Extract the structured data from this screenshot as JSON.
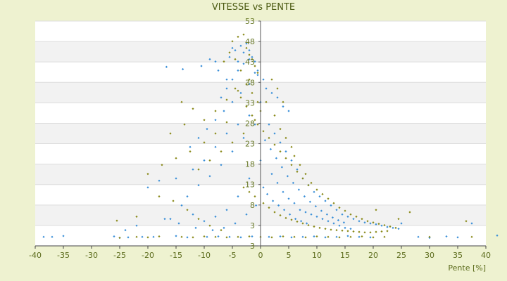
{
  "chart_data": {
    "type": "scatter",
    "title": "VITESSE vs PENTE",
    "xlabel": "Pente [%]",
    "ylabel": "",
    "xlim": [
      -40,
      40
    ],
    "ylim": [
      3,
      53
    ],
    "x_ticks": [
      "-40",
      "-35",
      "-30",
      "-25",
      "-20",
      "-15",
      "-10",
      "-5",
      "0",
      "5",
      "10",
      "15",
      "20",
      "25",
      "30",
      "35",
      "40"
    ],
    "y_ticks": [
      "53",
      "48",
      "43",
      "38",
      "33",
      "28",
      "23",
      "18",
      "13",
      "8",
      "3",
      "3"
    ],
    "grid": true,
    "background_bands": [
      "#ffffff",
      "#f2f2f2"
    ],
    "series": [
      {
        "color": "#3a8fd8",
        "marker": "diamond",
        "points": [
          [
            -38.5,
            5.0
          ],
          [
            -35.0,
            5.2
          ],
          [
            -25.0,
            4.8
          ],
          [
            -23.5,
            4.9
          ],
          [
            -21.0,
            5.0
          ],
          [
            -16.7,
            42.8
          ],
          [
            -13.8,
            42.3
          ],
          [
            -10.5,
            43.0
          ],
          [
            -9.0,
            44.5
          ],
          [
            -8.0,
            44.0
          ],
          [
            -7.5,
            42.0
          ],
          [
            -6.0,
            40.0
          ],
          [
            -5.5,
            45.0
          ],
          [
            -5.0,
            47.0
          ],
          [
            -4.5,
            46.5
          ],
          [
            -4.0,
            44.0
          ],
          [
            -3.5,
            47.5
          ],
          [
            -3.0,
            46.0
          ],
          [
            -2.5,
            48.0
          ],
          [
            -2.0,
            46.5
          ],
          [
            -1.5,
            45.0
          ],
          [
            -1.0,
            44.0
          ],
          [
            -0.5,
            42.0
          ],
          [
            0.5,
            40.0
          ],
          [
            1.0,
            38.0
          ],
          [
            2.0,
            37.0
          ],
          [
            3.0,
            36.0
          ],
          [
            4.0,
            34.0
          ],
          [
            5.0,
            33.0
          ],
          [
            1.5,
            30.0
          ],
          [
            2.5,
            28.0
          ],
          [
            3.5,
            26.0
          ],
          [
            4.5,
            24.0
          ],
          [
            5.5,
            22.0
          ],
          [
            6.5,
            20.0
          ],
          [
            7.5,
            18.0
          ],
          [
            8.5,
            16.5
          ],
          [
            9.5,
            15.0
          ],
          [
            10.5,
            14.0
          ],
          [
            11.5,
            13.0
          ],
          [
            12.5,
            12.0
          ],
          [
            13.5,
            11.0
          ],
          [
            14.5,
            10.0
          ],
          [
            15.5,
            9.5
          ],
          [
            16.5,
            9.0
          ],
          [
            17.5,
            8.5
          ],
          [
            18.5,
            8.2
          ],
          [
            19.5,
            8.0
          ],
          [
            20.5,
            7.8
          ],
          [
            21.5,
            7.5
          ],
          [
            22.5,
            7.2
          ],
          [
            23.5,
            7.0
          ],
          [
            24.5,
            6.8
          ],
          [
            25.0,
            8.0
          ],
          [
            2.0,
            19.0
          ],
          [
            3.0,
            17.0
          ],
          [
            4.0,
            15.0
          ],
          [
            5.0,
            13.5
          ],
          [
            6.0,
            12.5
          ],
          [
            7.0,
            11.0
          ],
          [
            8.0,
            10.5
          ],
          [
            9.0,
            10.0
          ],
          [
            10.0,
            9.5
          ],
          [
            11.0,
            9.0
          ],
          [
            12.0,
            8.5
          ],
          [
            13.0,
            8.0
          ],
          [
            14.0,
            7.5
          ],
          [
            15.0,
            7.0
          ],
          [
            16.0,
            6.8
          ],
          [
            -20.0,
            16.0
          ],
          [
            -18.0,
            17.5
          ],
          [
            -15.0,
            18.0
          ],
          [
            -12.0,
            20.0
          ],
          [
            -10.0,
            22.0
          ],
          [
            -8.0,
            25.0
          ],
          [
            -6.0,
            28.0
          ],
          [
            -4.0,
            30.0
          ],
          [
            -2.0,
            32.0
          ],
          [
            0.0,
            35.0
          ],
          [
            -14.0,
            12.0
          ],
          [
            -12.0,
            10.0
          ],
          [
            -10.0,
            8.5
          ],
          [
            -8.0,
            9.5
          ],
          [
            -6.0,
            11.0
          ],
          [
            -4.0,
            14.0
          ],
          [
            -2.0,
            18.0
          ],
          [
            0.0,
            22.0
          ],
          [
            -24.0,
            6.5
          ],
          [
            -22.0,
            7.5
          ],
          [
            -16.0,
            9.0
          ],
          [
            -13.0,
            14.0
          ],
          [
            -11.0,
            16.5
          ],
          [
            -9.0,
            18.5
          ],
          [
            -7.0,
            21.0
          ],
          [
            -5.0,
            24.0
          ],
          [
            -3.0,
            27.0
          ],
          [
            -1.0,
            30.0
          ],
          [
            0.8,
            26.5
          ],
          [
            1.8,
            24.5
          ],
          [
            2.8,
            22.5
          ],
          [
            3.8,
            20.5
          ],
          [
            4.8,
            18.5
          ],
          [
            5.8,
            17.0
          ],
          [
            6.8,
            15.5
          ],
          [
            7.8,
            14.0
          ],
          [
            8.8,
            12.8
          ],
          [
            9.8,
            11.8
          ],
          [
            10.8,
            10.8
          ],
          [
            11.8,
            10.0
          ],
          [
            12.8,
            9.3
          ],
          [
            13.8,
            8.7
          ],
          [
            14.8,
            8.2
          ],
          [
            28.0,
            5.0
          ],
          [
            30.0,
            4.8
          ],
          [
            33.0,
            5.1
          ],
          [
            35.0,
            4.9
          ],
          [
            37.5,
            8.0
          ],
          [
            42.0,
            5.3
          ],
          [
            -37.0,
            5.0
          ],
          [
            -26.0,
            5.1
          ],
          [
            -19.0,
            5.0
          ],
          [
            -15.0,
            5.2
          ],
          [
            -13.0,
            4.9
          ],
          [
            -9.5,
            5.0
          ],
          [
            -7.5,
            5.1
          ],
          [
            -5.5,
            5.0
          ],
          [
            -3.5,
            4.9
          ],
          [
            -1.5,
            5.1
          ],
          [
            1.5,
            5.0
          ],
          [
            3.5,
            5.1
          ],
          [
            5.5,
            4.9
          ],
          [
            7.5,
            5.0
          ],
          [
            9.5,
            5.1
          ],
          [
            11.5,
            4.9
          ],
          [
            13.5,
            5.0
          ],
          [
            15.5,
            5.2
          ],
          [
            17.5,
            5.0
          ],
          [
            19.5,
            4.9
          ],
          [
            -12.5,
            25.0
          ],
          [
            -11.0,
            27.0
          ],
          [
            -9.5,
            29.0
          ],
          [
            -8.0,
            31.0
          ],
          [
            -6.5,
            33.0
          ],
          [
            -5.0,
            35.0
          ],
          [
            -3.5,
            37.0
          ],
          [
            -2.0,
            39.0
          ],
          [
            -0.5,
            41.0
          ],
          [
            -7.0,
            36.0
          ],
          [
            -6.0,
            38.0
          ],
          [
            -5.0,
            40.0
          ],
          [
            -4.0,
            42.0
          ],
          [
            -3.0,
            43.5
          ],
          [
            -2.0,
            44.5
          ],
          [
            -1.0,
            41.5
          ],
          [
            0.5,
            16.0
          ],
          [
            1.2,
            14.5
          ],
          [
            2.2,
            13.0
          ],
          [
            3.2,
            12.0
          ],
          [
            4.2,
            11.0
          ],
          [
            5.2,
            10.0
          ],
          [
            6.2,
            9.0
          ],
          [
            7.2,
            8.5
          ],
          [
            8.2,
            8.0
          ],
          [
            -17.0,
            9.0
          ],
          [
            -14.5,
            8.0
          ],
          [
            -11.5,
            7.0
          ],
          [
            -8.5,
            6.5
          ],
          [
            -6.5,
            7.0
          ],
          [
            -4.5,
            8.0
          ],
          [
            -2.5,
            10.0
          ],
          [
            -0.8,
            12.0
          ]
        ]
      },
      {
        "color": "#8a8a1a",
        "marker": "diamond",
        "points": [
          [
            -25.5,
            8.6
          ],
          [
            -22.0,
            9.5
          ],
          [
            -18.0,
            14.0
          ],
          [
            -15.5,
            13.0
          ],
          [
            -13.0,
            11.0
          ],
          [
            -11.0,
            9.0
          ],
          [
            -9.0,
            7.5
          ],
          [
            -7.0,
            6.5
          ],
          [
            -5.0,
            48.5
          ],
          [
            -4.0,
            49.5
          ],
          [
            -3.0,
            50.0
          ],
          [
            -2.5,
            47.0
          ],
          [
            -2.0,
            45.5
          ],
          [
            -1.5,
            44.5
          ],
          [
            -1.0,
            43.0
          ],
          [
            -0.5,
            41.5
          ],
          [
            -4.5,
            38.0
          ],
          [
            -3.5,
            36.0
          ],
          [
            -2.5,
            34.0
          ],
          [
            -1.5,
            32.0
          ],
          [
            -0.5,
            30.0
          ],
          [
            0.5,
            28.5
          ],
          [
            1.5,
            27.0
          ],
          [
            2.5,
            25.5
          ],
          [
            3.5,
            24.0
          ],
          [
            4.5,
            22.5
          ],
          [
            5.5,
            21.0
          ],
          [
            6.5,
            19.5
          ],
          [
            7.5,
            18.0
          ],
          [
            8.5,
            16.5
          ],
          [
            2.0,
            40.0
          ],
          [
            3.0,
            38.0
          ],
          [
            4.0,
            35.0
          ],
          [
            2.5,
            32.0
          ],
          [
            3.5,
            29.0
          ],
          [
            4.5,
            27.0
          ],
          [
            5.5,
            25.0
          ],
          [
            6.0,
            23.0
          ],
          [
            7.0,
            21.0
          ],
          [
            8.0,
            19.0
          ],
          [
            9.0,
            17.0
          ],
          [
            10.0,
            15.5
          ],
          [
            11.0,
            14.5
          ],
          [
            12.0,
            13.5
          ],
          [
            13.0,
            12.5
          ],
          [
            14.0,
            11.5
          ],
          [
            15.0,
            10.8
          ],
          [
            16.0,
            10.0
          ],
          [
            17.0,
            9.5
          ],
          [
            18.0,
            9.0
          ],
          [
            19.0,
            8.5
          ],
          [
            20.0,
            8.2
          ],
          [
            21.0,
            7.9
          ],
          [
            22.0,
            7.6
          ],
          [
            23.0,
            7.3
          ],
          [
            24.0,
            7.0
          ],
          [
            -20.0,
            19.0
          ],
          [
            -17.5,
            21.0
          ],
          [
            -15.0,
            22.5
          ],
          [
            -12.5,
            24.0
          ],
          [
            -10.0,
            26.0
          ],
          [
            -8.0,
            28.0
          ],
          [
            -6.0,
            30.5
          ],
          [
            -14.0,
            35.0
          ],
          [
            -12.0,
            33.5
          ],
          [
            -10.0,
            31.0
          ],
          [
            -8.0,
            33.0
          ],
          [
            -6.0,
            35.5
          ],
          [
            -4.0,
            37.5
          ],
          [
            -2.0,
            40.0
          ],
          [
            -25.0,
            4.8
          ],
          [
            -22.0,
            5.0
          ],
          [
            -20.0,
            4.9
          ],
          [
            -18.0,
            5.1
          ],
          [
            -14.0,
            5.0
          ],
          [
            -12.0,
            4.9
          ],
          [
            -10.0,
            5.1
          ],
          [
            -8.0,
            5.0
          ],
          [
            -6.0,
            4.9
          ],
          [
            -4.0,
            5.0
          ],
          [
            -2.0,
            5.1
          ],
          [
            0.0,
            5.0
          ],
          [
            2.0,
            4.9
          ],
          [
            4.0,
            5.1
          ],
          [
            6.0,
            5.0
          ],
          [
            8.0,
            4.9
          ],
          [
            10.0,
            5.1
          ],
          [
            12.0,
            5.0
          ],
          [
            14.0,
            4.9
          ],
          [
            16.0,
            5.0
          ],
          [
            18.0,
            5.1
          ],
          [
            20.0,
            4.9
          ],
          [
            22.0,
            5.0
          ],
          [
            -3.0,
            16.0
          ],
          [
            -2.0,
            15.0
          ],
          [
            -1.0,
            14.0
          ],
          [
            0.5,
            12.5
          ],
          [
            1.5,
            11.5
          ],
          [
            2.5,
            10.5
          ],
          [
            3.5,
            9.8
          ],
          [
            4.5,
            9.2
          ],
          [
            5.5,
            8.8
          ],
          [
            6.5,
            8.4
          ],
          [
            7.5,
            8.0
          ],
          [
            8.5,
            7.6
          ],
          [
            9.5,
            7.3
          ],
          [
            10.5,
            7.0
          ],
          [
            11.5,
            6.8
          ],
          [
            12.5,
            6.6
          ],
          [
            13.5,
            6.5
          ],
          [
            14.5,
            6.4
          ],
          [
            15.5,
            6.3
          ],
          [
            16.5,
            6.2
          ],
          [
            17.5,
            6.1
          ],
          [
            18.5,
            6.0
          ],
          [
            19.5,
            6.0
          ],
          [
            20.5,
            6.1
          ],
          [
            21.5,
            6.2
          ],
          [
            22.5,
            6.3
          ],
          [
            -16.0,
            28.0
          ],
          [
            -13.5,
            30.0
          ],
          [
            -11.0,
            20.0
          ],
          [
            -9.0,
            22.0
          ],
          [
            -7.0,
            24.0
          ],
          [
            -5.0,
            26.0
          ],
          [
            -3.0,
            28.0
          ],
          [
            -1.0,
            31.0
          ],
          [
            0.0,
            33.0
          ],
          [
            1.0,
            35.0
          ],
          [
            -6.5,
            44.0
          ],
          [
            -5.5,
            46.0
          ],
          [
            -4.5,
            44.5
          ],
          [
            -3.5,
            42.0
          ],
          [
            -2.5,
            39.0
          ],
          [
            -1.5,
            37.0
          ],
          [
            -0.5,
            35.0
          ],
          [
            30.0,
            5.0
          ],
          [
            37.5,
            5.0
          ],
          [
            36.5,
            8.5
          ],
          [
            24.5,
            9.0
          ],
          [
            20.5,
            11.0
          ],
          [
            26.5,
            10.5
          ]
        ]
      }
    ]
  }
}
